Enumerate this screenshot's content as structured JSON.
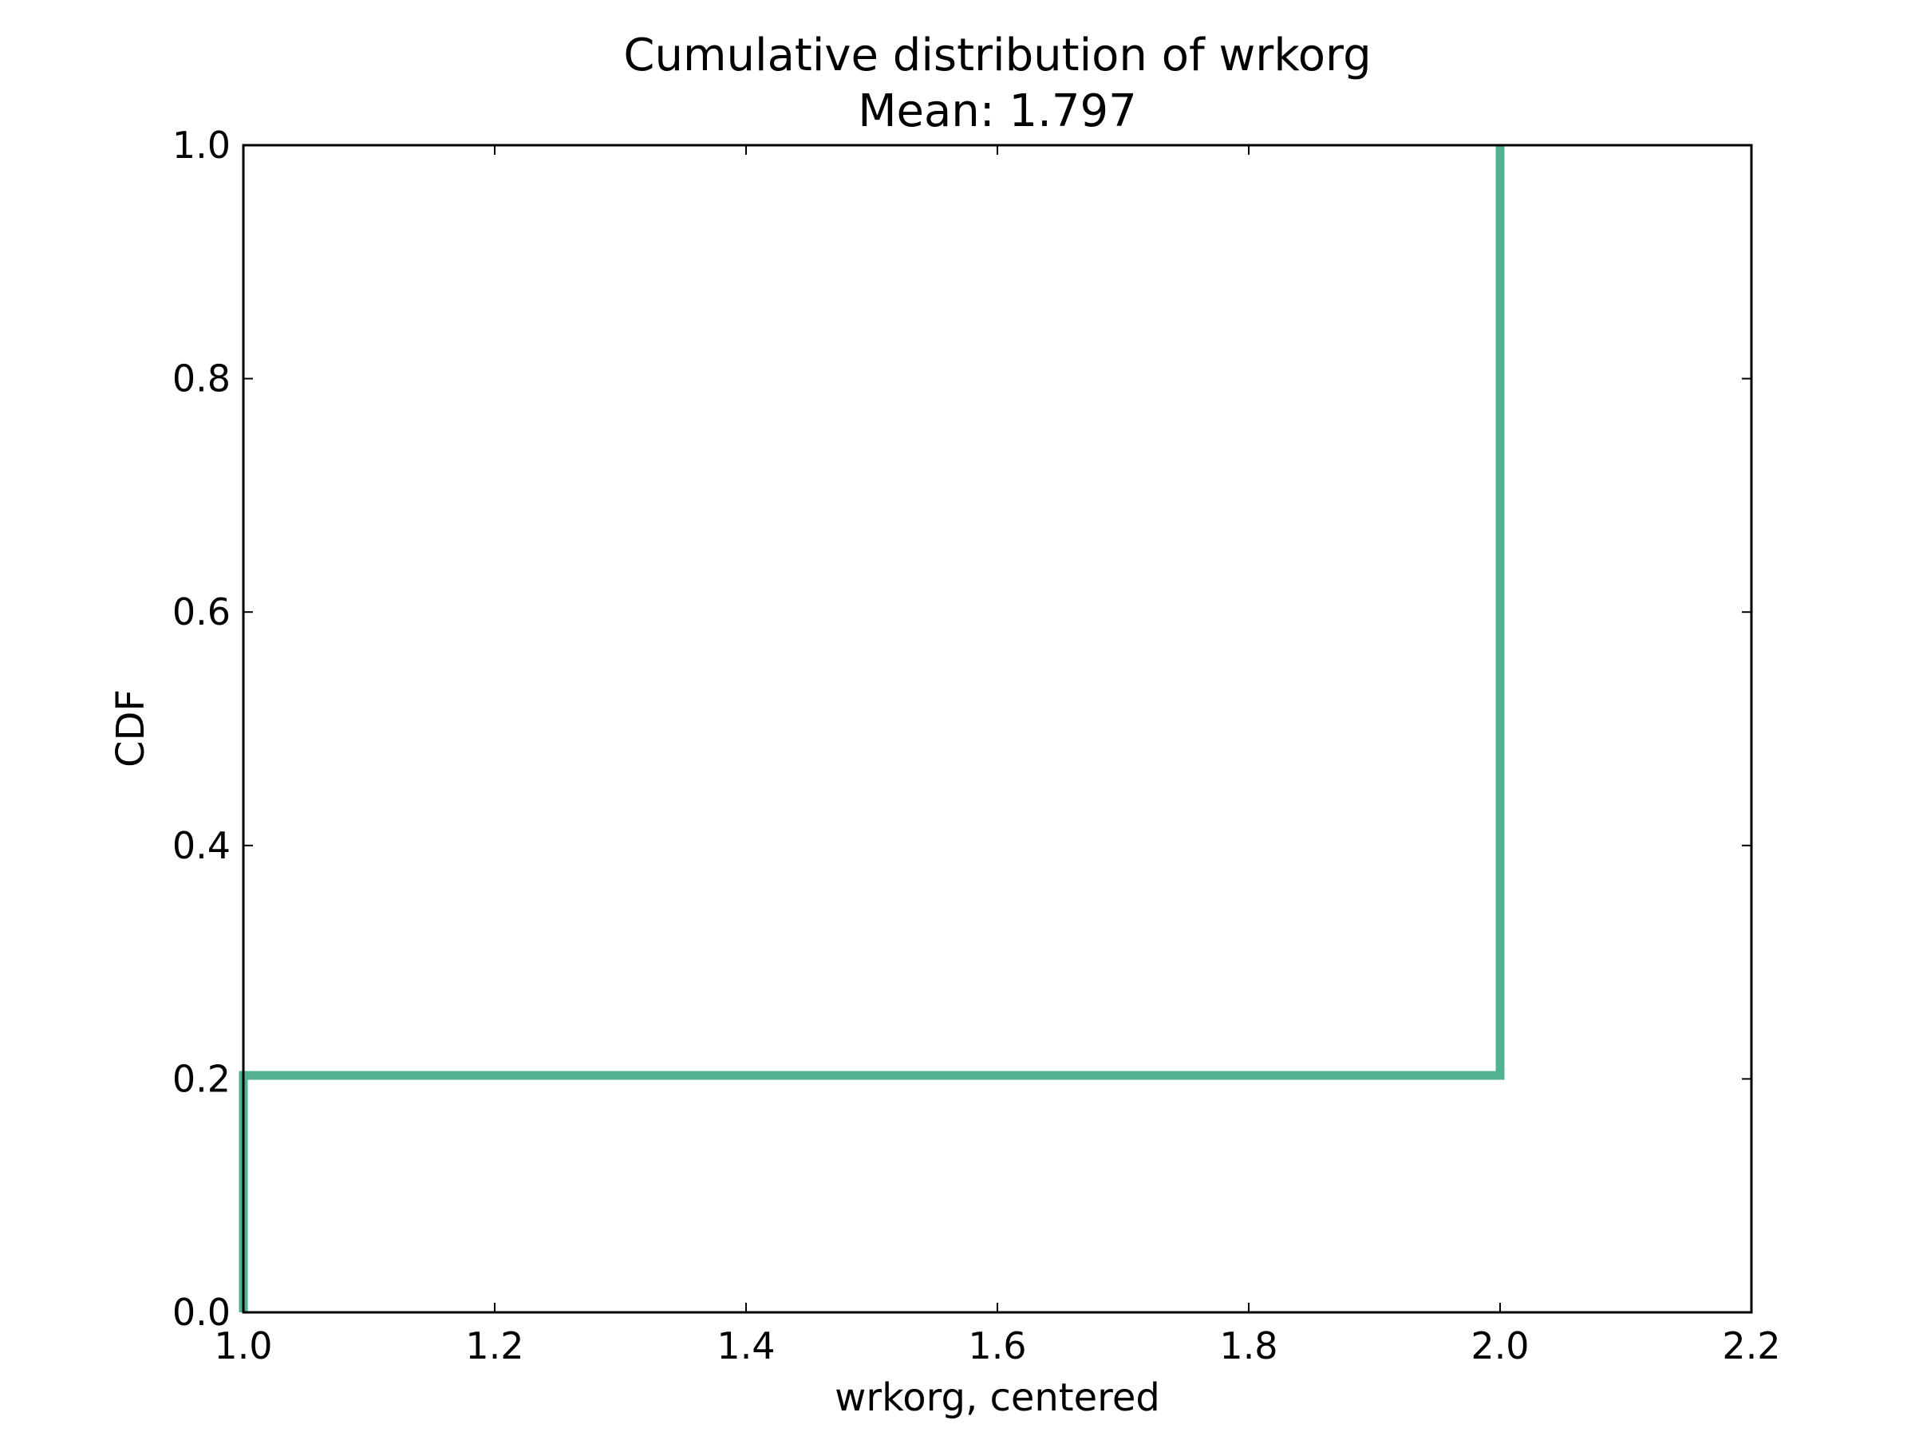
{
  "chart_data": {
    "type": "line",
    "title": "Cumulative distribution of wrkorg",
    "subtitle": "Mean: 1.797",
    "xlabel": "wrkorg, centered",
    "ylabel": "CDF",
    "xlim": [
      1.0,
      2.2
    ],
    "ylim": [
      0.0,
      1.0
    ],
    "xticks": [
      1.0,
      1.2,
      1.4,
      1.6,
      1.8,
      2.0,
      2.2
    ],
    "yticks": [
      0.0,
      0.2,
      0.4,
      0.6,
      0.8,
      1.0
    ],
    "xtick_labels": [
      "1.0",
      "1.2",
      "1.4",
      "1.6",
      "1.8",
      "2.0",
      "2.2"
    ],
    "ytick_labels": [
      "0.0",
      "0.2",
      "0.4",
      "0.6",
      "0.8",
      "1.0"
    ],
    "grid": false,
    "series": [
      {
        "color": "#52b192",
        "step": "post",
        "x": [
          1.0,
          1.0,
          2.0,
          2.0
        ],
        "y": [
          0.0,
          0.203,
          0.203,
          1.0
        ]
      }
    ]
  }
}
